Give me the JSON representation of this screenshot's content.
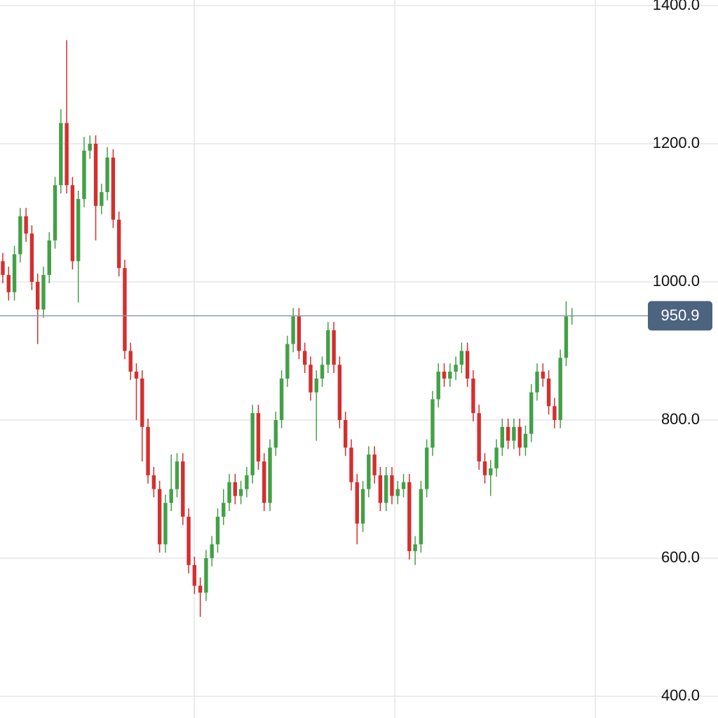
{
  "chart_data": {
    "type": "candlestick",
    "open": [
      1030,
      1010,
      985,
      1040,
      1095,
      1070,
      1000,
      960,
      1010,
      1060,
      1140,
      1230,
      1140,
      1030,
      1120,
      1190,
      1200,
      1110,
      1130,
      1180,
      1090,
      1020,
      900,
      870,
      860,
      790,
      720,
      700,
      620,
      680,
      700,
      740,
      660,
      590,
      560,
      550,
      600,
      620,
      660,
      680,
      710,
      690,
      700,
      720,
      810,
      740,
      680,
      760,
      800,
      860,
      910,
      950,
      900,
      880,
      840,
      860,
      880,
      930,
      880,
      800,
      760,
      710,
      650,
      700,
      750,
      720,
      680,
      720,
      690,
      700,
      710,
      610,
      620,
      700,
      760,
      830,
      870,
      860,
      870,
      880,
      900,
      860,
      810,
      740,
      720,
      730,
      760,
      790,
      770,
      790,
      760,
      780,
      840,
      870,
      860,
      820,
      800,
      890,
      950
    ],
    "high": [
      1042,
      1022,
      1052,
      1107,
      1107,
      1082,
      1012,
      1022,
      1072,
      1152,
      1250,
      1350,
      1152,
      1132,
      1210,
      1212,
      1212,
      1142,
      1195,
      1192,
      1102,
      1032,
      912,
      882,
      872,
      802,
      732,
      712,
      692,
      750,
      752,
      752,
      672,
      602,
      572,
      612,
      632,
      672,
      700,
      722,
      722,
      712,
      732,
      822,
      822,
      752,
      772,
      812,
      872,
      922,
      962,
      962,
      912,
      892,
      872,
      892,
      942,
      942,
      892,
      812,
      772,
      722,
      712,
      762,
      762,
      732,
      732,
      732,
      712,
      722,
      722,
      632,
      712,
      772,
      842,
      882,
      882,
      882,
      892,
      912,
      912,
      872,
      822,
      752,
      742,
      772,
      802,
      802,
      802,
      802,
      792,
      852,
      882,
      882,
      872,
      832,
      902,
      972,
      962
    ],
    "low": [
      998,
      973,
      973,
      1028,
      1058,
      988,
      910,
      948,
      998,
      1048,
      1128,
      1128,
      1018,
      970,
      1108,
      1178,
      1060,
      1098,
      1118,
      1078,
      1008,
      888,
      858,
      800,
      740,
      708,
      688,
      608,
      608,
      668,
      688,
      648,
      578,
      548,
      515,
      538,
      588,
      608,
      648,
      668,
      678,
      678,
      688,
      708,
      728,
      668,
      668,
      748,
      788,
      848,
      898,
      888,
      868,
      828,
      770,
      848,
      868,
      868,
      788,
      748,
      698,
      620,
      638,
      688,
      708,
      668,
      668,
      678,
      678,
      688,
      598,
      590,
      608,
      688,
      748,
      818,
      848,
      848,
      858,
      868,
      848,
      798,
      728,
      708,
      690,
      718,
      748,
      758,
      758,
      748,
      748,
      768,
      828,
      848,
      808,
      788,
      788,
      878,
      938
    ],
    "close": [
      1010,
      985,
      1040,
      1095,
      1070,
      1000,
      960,
      1010,
      1060,
      1140,
      1230,
      1140,
      1030,
      1120,
      1190,
      1200,
      1110,
      1130,
      1180,
      1090,
      1020,
      900,
      870,
      860,
      790,
      720,
      700,
      620,
      680,
      700,
      740,
      660,
      590,
      560,
      550,
      600,
      620,
      660,
      680,
      710,
      690,
      700,
      720,
      810,
      740,
      680,
      760,
      800,
      860,
      910,
      950,
      900,
      880,
      840,
      860,
      880,
      930,
      880,
      800,
      760,
      710,
      650,
      700,
      750,
      720,
      680,
      720,
      690,
      700,
      710,
      610,
      620,
      700,
      760,
      830,
      870,
      860,
      870,
      880,
      900,
      860,
      810,
      740,
      720,
      730,
      760,
      790,
      770,
      790,
      760,
      780,
      840,
      870,
      860,
      820,
      800,
      890,
      950,
      950.9
    ],
    "up_color": "#43a047",
    "down_color": "#d32f2f",
    "ylim": [
      390,
      1410
    ],
    "yticks": [
      {
        "value": 400,
        "label": "400.0"
      },
      {
        "value": 600,
        "label": "600.0"
      },
      {
        "value": 800,
        "label": "800.0"
      },
      {
        "value": 1000,
        "label": "1000.0"
      },
      {
        "value": 1200,
        "label": "1200.0"
      },
      {
        "value": 1400,
        "label": "1400.0"
      }
    ],
    "grid": true
  }
}
